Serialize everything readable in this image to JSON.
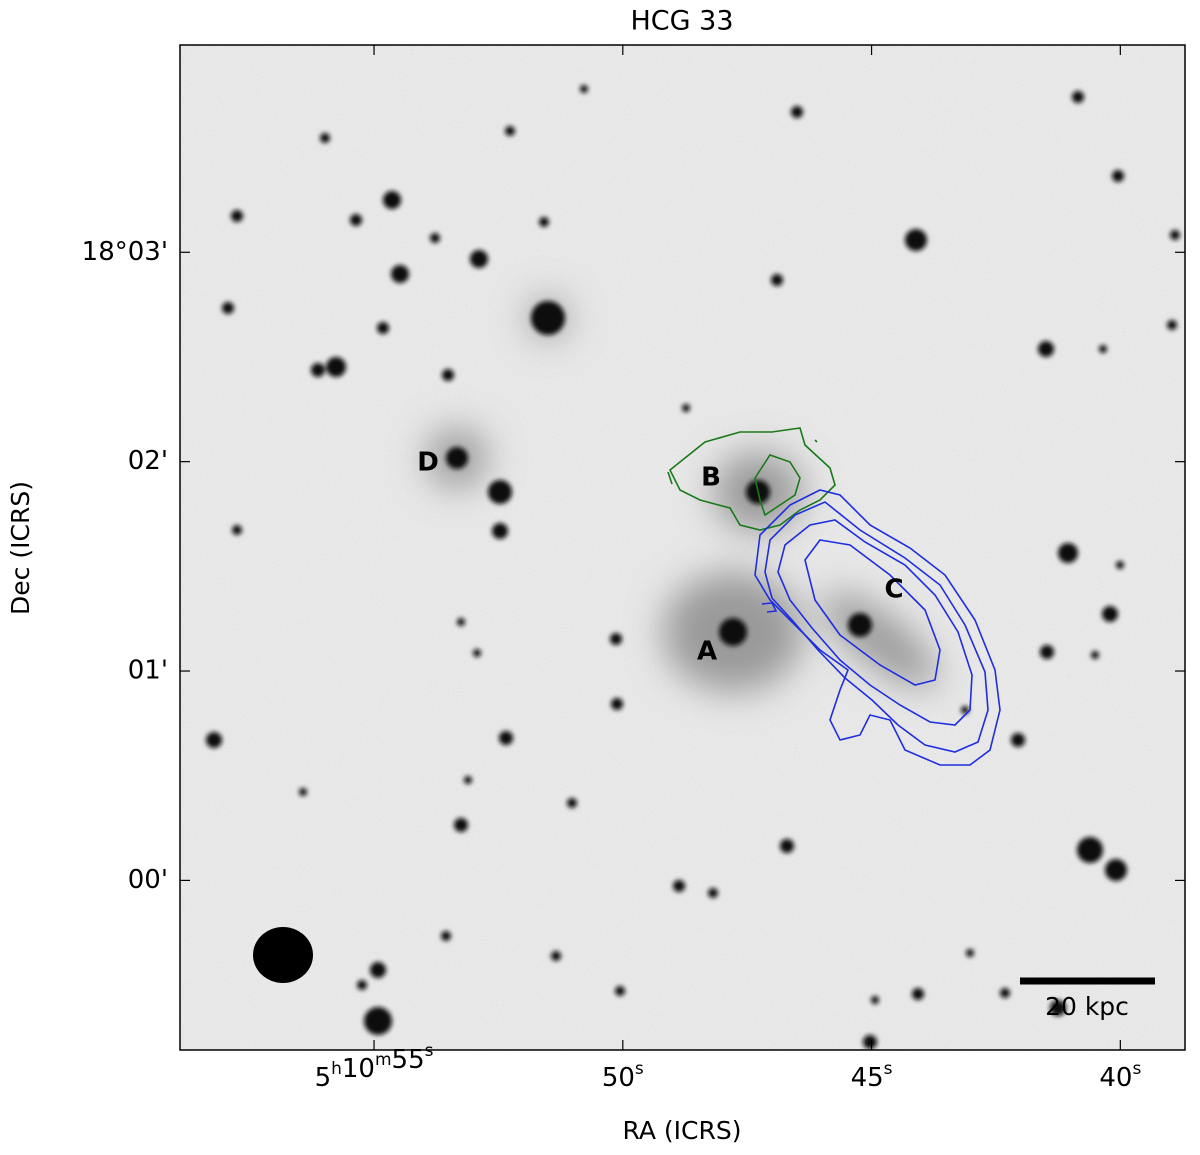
{
  "chart_data": {
    "type": "image",
    "title": "HCG 33",
    "x_label": "RA (ICRS)",
    "y_label": "Dec (ICRS)",
    "xlim": [
      58.9,
      38.7
    ],
    "ylim": [
      -0.81,
      3.99
    ],
    "xticks": [
      {
        "value": 55,
        "label": "5h10m55s"
      },
      {
        "value": 50,
        "label": "50s"
      },
      {
        "value": 45,
        "label": "45s"
      },
      {
        "value": 40,
        "label": "40s"
      }
    ],
    "yticks": [
      {
        "value": 3,
        "label": "18°03'"
      },
      {
        "value": 2,
        "label": "02'"
      },
      {
        "value": 1,
        "label": "01'"
      },
      {
        "value": 0,
        "label": "00'"
      }
    ],
    "annotations": [
      "A",
      "B",
      "C",
      "D"
    ],
    "scale_bar_label": "20 kpc"
  }
}
